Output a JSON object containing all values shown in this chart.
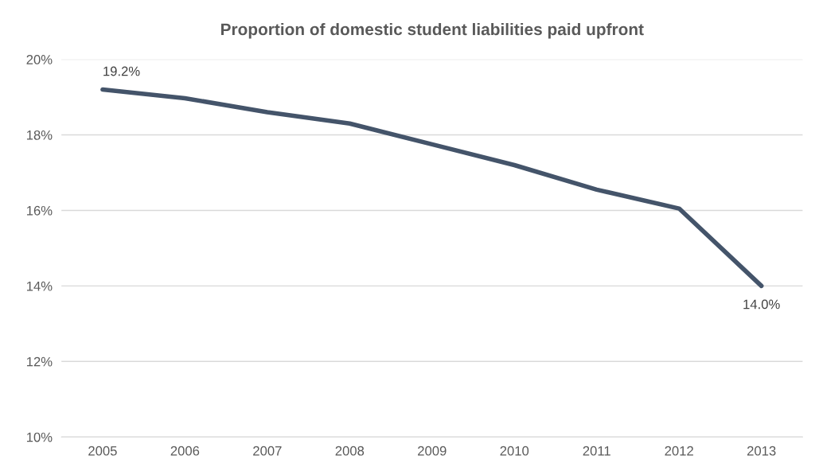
{
  "chart_data": {
    "type": "line",
    "title": "Proportion of domestic student liabilities paid upfront",
    "categories": [
      "2005",
      "2006",
      "2007",
      "2008",
      "2009",
      "2010",
      "2011",
      "2012",
      "2013"
    ],
    "series": [
      {
        "color": "#44546a",
        "values": [
          19.2,
          18.97,
          18.6,
          18.3,
          17.75,
          17.2,
          16.55,
          16.05,
          14.0
        ],
        "value_labels": [
          "19.2%",
          null,
          null,
          null,
          null,
          null,
          null,
          null,
          "14.0%"
        ]
      }
    ],
    "ylim": [
      10,
      20
    ],
    "yticks": [
      {
        "value": 10,
        "label": "10%"
      },
      {
        "value": 12,
        "label": "12%"
      },
      {
        "value": 14,
        "label": "14%"
      },
      {
        "value": 16,
        "label": "16%"
      },
      {
        "value": 18,
        "label": "18%"
      },
      {
        "value": 20,
        "label": "20%"
      }
    ],
    "grid": "y",
    "marker": "none",
    "line_style": "solid",
    "legend": false
  }
}
